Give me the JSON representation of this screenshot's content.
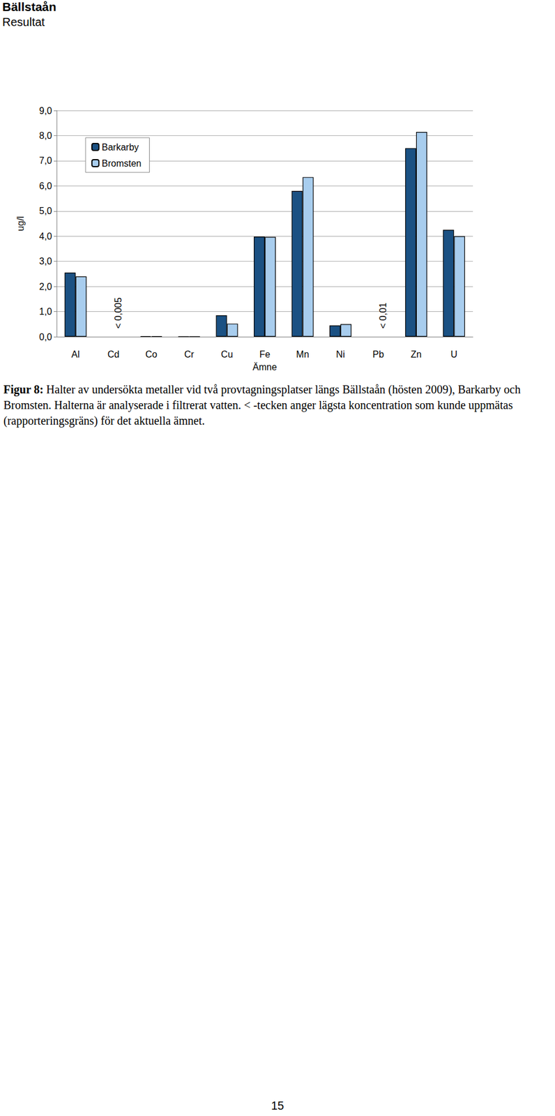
{
  "header": {
    "title": "Bällstaån",
    "subtitle": "Resultat"
  },
  "chart_data": {
    "type": "bar",
    "categories": [
      "Al",
      "Cd",
      "Co",
      "Cr",
      "Cu",
      "Fe",
      "Mn",
      "Ni",
      "Pb",
      "Zn",
      "U"
    ],
    "series": [
      {
        "name": "Barkarby",
        "color": "#1b5183",
        "values": [
          2.55,
          null,
          0.02,
          0.01,
          0.85,
          3.98,
          5.8,
          0.45,
          null,
          7.5,
          4.25
        ]
      },
      {
        "name": "Bromsten",
        "color": "#a8cdee",
        "values": [
          2.4,
          null,
          0.02,
          0.01,
          0.52,
          3.97,
          6.35,
          0.5,
          null,
          8.15,
          4.0
        ]
      }
    ],
    "x_label": "Ämne",
    "y_label": "ug/l",
    "ylim": [
      0,
      9
    ],
    "yticks": [
      {
        "value": 0,
        "label": "0,0"
      },
      {
        "value": 1,
        "label": "1,0"
      },
      {
        "value": 2,
        "label": "2,0"
      },
      {
        "value": 3,
        "label": "3,0"
      },
      {
        "value": 4,
        "label": "4,0"
      },
      {
        "value": 5,
        "label": "5,0"
      },
      {
        "value": 6,
        "label": "6,0"
      },
      {
        "value": 7,
        "label": "7,0"
      },
      {
        "value": 8,
        "label": "8,0"
      },
      {
        "value": 9,
        "label": "9,0"
      }
    ],
    "grid": true,
    "legend": "upper left",
    "annotations": [
      {
        "text": "< 0,005",
        "category": "Cd"
      },
      {
        "text": "< 0,01",
        "category": "Pb"
      }
    ]
  },
  "caption": {
    "label": "Figur 8:",
    "text": "Halter av undersökta metaller vid två provtagningsplatser längs Bällstaån (hösten 2009), Barkarby och Bromsten. Halterna är analyserade i filtrerat vatten. < -tecken anger lägsta koncentration som kunde uppmätas (rapporteringsgräns) för det aktuella ämnet."
  },
  "page_number": "15"
}
